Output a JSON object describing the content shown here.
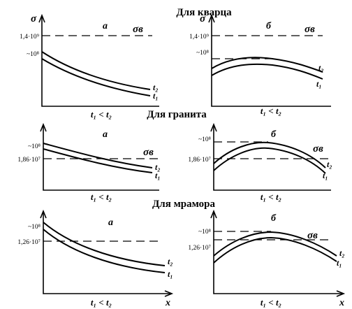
{
  "rows": [
    {
      "title": "Для кварца",
      "panels": [
        {
          "letter": "а",
          "axis_label": "σ",
          "tick_top": "1,4·10⁹",
          "tick_mid": "~10⁸",
          "sigma_label": "σв",
          "t2": "t₂",
          "t1": "t₁",
          "condition": "t₁ < t₂",
          "x_label": ""
        },
        {
          "letter": "б",
          "axis_label": "σ",
          "tick_top": "1,4·10⁹",
          "tick_mid": "~10⁸",
          "sigma_label": "σв",
          "t2": "t₂",
          "t1": "t₁",
          "condition": "t₁ < t₂",
          "x_label": ""
        }
      ]
    },
    {
      "title": "Для гранита",
      "panels": [
        {
          "letter": "а",
          "tick_top": "~10⁸",
          "tick_mid": "1,86·10⁷",
          "sigma_label": "σв",
          "t2": "t₂",
          "t1": "t₁",
          "condition": "t₁ < t₂",
          "x_label": ""
        },
        {
          "letter": "б",
          "tick_top": "~10⁸",
          "tick_mid": "1,86·10⁷",
          "sigma_label": "σв",
          "t2": "t₂",
          "t1": "t₁",
          "condition": "t₁ < t₂",
          "x_label": ""
        }
      ]
    },
    {
      "title": "Для мрамора",
      "panels": [
        {
          "letter": "а",
          "tick_top": "~10⁸",
          "tick_mid": "1,26·10⁷",
          "sigma_label": "σв",
          "t2": "t₂",
          "t1": "t₁",
          "condition": "t₁ < t₂",
          "x_label": "x"
        },
        {
          "letter": "б",
          "tick_top": "~10⁸",
          "tick_mid": "1,26·10⁷",
          "sigma_label": "σв",
          "t2": "t₂",
          "t1": "t₁",
          "condition": "t₁ < t₂",
          "x_label": "x"
        }
      ]
    }
  ]
}
